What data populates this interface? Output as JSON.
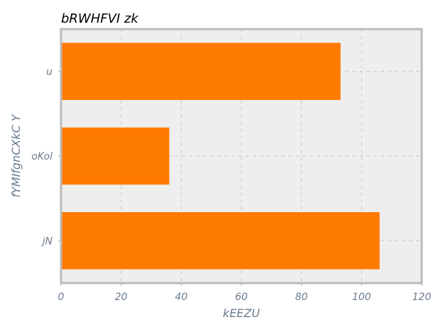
{
  "chart_data": {
    "type": "bar",
    "orientation": "horizontal",
    "title": "bRWHFVI zk",
    "xlabel": "kEEZU",
    "ylabel": "fYMIfgnCXkC Y",
    "categories": [
      "u",
      "oKol",
      "jN"
    ],
    "values": [
      93,
      36,
      106
    ],
    "xlim": [
      0,
      120
    ],
    "xticks": [
      0,
      20,
      40,
      60,
      80,
      100,
      120
    ],
    "grid": true,
    "legend": "none",
    "colors": {
      "bar": "#ff7b00",
      "plot_background": "#eeeeee",
      "frame": "#bbbbbb"
    }
  }
}
